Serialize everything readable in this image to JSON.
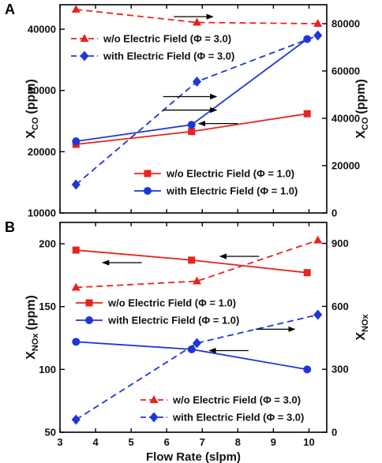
{
  "chart_data": [
    {
      "panel_label": "A",
      "type": "line",
      "xlabel": "",
      "xlim": [
        3.0,
        10.5
      ],
      "left_axis": {
        "label_main": "X",
        "label_sub": "CO",
        "label_unit": "(ppm)",
        "ylim": [
          10000,
          44000
        ],
        "ticks": [
          10000,
          20000,
          30000,
          40000
        ],
        "tick_labels": [
          "10000",
          "20000",
          "30000",
          "40000"
        ]
      },
      "right_axis": {
        "label_main": "X",
        "label_sub": "CO",
        "label_unit": "(ppm)",
        "ylim": [
          0,
          88000
        ],
        "ticks": [
          0,
          20000,
          40000,
          60000,
          80000
        ],
        "tick_labels": [
          "0",
          "20000",
          "40000",
          "60000",
          "80000"
        ]
      },
      "series": [
        {
          "name": "w/o Electric Field (Φ = 3.0)",
          "axis": "right",
          "color": "#e8231e",
          "marker": "triangle",
          "dash": true,
          "x": [
            3.45,
            6.85,
            10.25
          ],
          "y": [
            86000,
            80500,
            80000
          ]
        },
        {
          "name": "with Electric Field (Φ = 3.0)",
          "axis": "right",
          "color": "#1e36d8",
          "marker": "diamond",
          "dash": true,
          "x": [
            3.45,
            6.85,
            10.25
          ],
          "y": [
            12000,
            55500,
            75000
          ]
        },
        {
          "name": "w/o Electric Field (Φ = 1.0)",
          "axis": "left",
          "color": "#e8231e",
          "marker": "square",
          "dash": false,
          "x": [
            3.45,
            6.7,
            9.95
          ],
          "y": [
            21200,
            23300,
            26200
          ]
        },
        {
          "name": "with Electric Field (Φ = 1.0)",
          "axis": "left",
          "color": "#1e36d8",
          "marker": "circle",
          "dash": false,
          "x": [
            3.45,
            6.7,
            9.95
          ],
          "y": [
            21700,
            24400,
            38400
          ]
        }
      ],
      "arrows": [
        {
          "from": [
            6.2,
            42050
          ],
          "to": [
            7.3,
            42050
          ]
        },
        {
          "from": [
            5.9,
            29000
          ],
          "to": [
            7.4,
            29000
          ]
        },
        {
          "from": [
            5.9,
            26800
          ],
          "to": [
            7.4,
            26800
          ]
        },
        {
          "from": [
            8.0,
            24600
          ],
          "to": [
            6.9,
            24600
          ]
        }
      ]
    },
    {
      "panel_label": "B",
      "type": "line",
      "xlabel": "Flow Rate (slpm)",
      "xlim": [
        3.0,
        10.5
      ],
      "xticks": [
        3,
        4,
        5,
        6,
        7,
        8,
        9,
        10
      ],
      "xtick_labels": [
        "3",
        "4",
        "5",
        "6",
        "7",
        "8",
        "9",
        "10"
      ],
      "left_axis": {
        "label_main": "X",
        "label_sub": "NOx",
        "label_unit": "(ppm)",
        "ylim": [
          50,
          217
        ],
        "ticks": [
          50,
          100,
          150,
          200
        ],
        "tick_labels": [
          "50",
          "100",
          "150",
          "200"
        ]
      },
      "right_axis": {
        "label_main": "X",
        "label_sub": "NOx",
        "label_unit": "",
        "ylim": [
          0,
          1000
        ],
        "ticks": [
          0,
          300,
          600,
          900
        ],
        "tick_labels": [
          "0",
          "300",
          "600",
          "900"
        ]
      },
      "series": [
        {
          "name": "w/o Electric Field (Φ = 1.0)",
          "axis": "left",
          "color": "#e8231e",
          "marker": "square",
          "dash": false,
          "x": [
            3.45,
            6.7,
            9.95
          ],
          "y": [
            195,
            187,
            177
          ]
        },
        {
          "name": "with Electric Field (Φ = 1.0)",
          "axis": "left",
          "color": "#1e36d8",
          "marker": "circle",
          "dash": false,
          "x": [
            3.45,
            6.7,
            9.95
          ],
          "y": [
            122,
            116,
            100
          ]
        },
        {
          "name": "w/o Electric Field (Φ = 3.0)",
          "axis": "right",
          "color": "#e8231e",
          "marker": "triangle",
          "dash": true,
          "x": [
            3.45,
            6.85,
            10.25
          ],
          "y": [
            690,
            720,
            915
          ]
        },
        {
          "name": "with Electric Field (Φ = 3.0)",
          "axis": "right",
          "color": "#1e36d8",
          "marker": "diamond",
          "dash": true,
          "x": [
            3.45,
            6.85,
            10.25
          ],
          "y": [
            60,
            425,
            560
          ]
        }
      ],
      "arrows": [
        {
          "from": [
            5.3,
            185
          ],
          "to": [
            4.2,
            185
          ]
        },
        {
          "from": [
            8.6,
            190
          ],
          "to": [
            7.5,
            190
          ]
        },
        {
          "from": [
            8.5,
            132
          ],
          "to": [
            9.6,
            132
          ]
        },
        {
          "from": [
            8.3,
            115
          ],
          "to": [
            7.2,
            115
          ]
        }
      ]
    }
  ]
}
